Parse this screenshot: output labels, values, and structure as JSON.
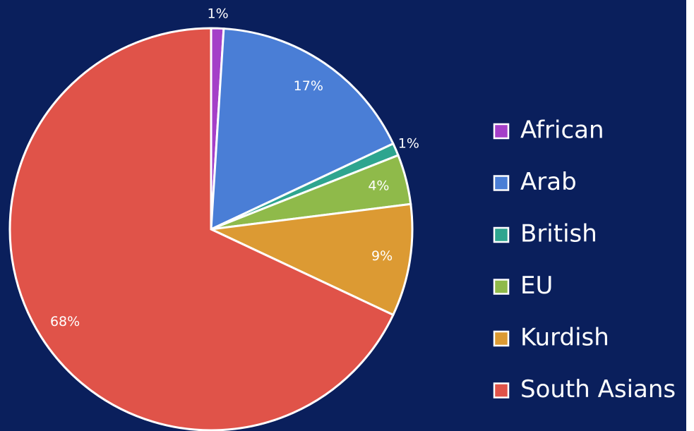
{
  "chart_data": {
    "type": "pie",
    "categories": [
      "African",
      "Arab",
      "British",
      "EU",
      "Kurdish",
      "South Asians"
    ],
    "values": [
      1,
      17,
      1,
      4,
      9,
      68
    ],
    "value_labels": [
      "1%",
      "17%",
      "1%",
      "4%",
      "9%",
      "68%"
    ],
    "colors": [
      "#a43fc8",
      "#4a7ed6",
      "#2ea58f",
      "#8fba4a",
      "#dc9a33",
      "#e05349"
    ],
    "legend": "right"
  }
}
